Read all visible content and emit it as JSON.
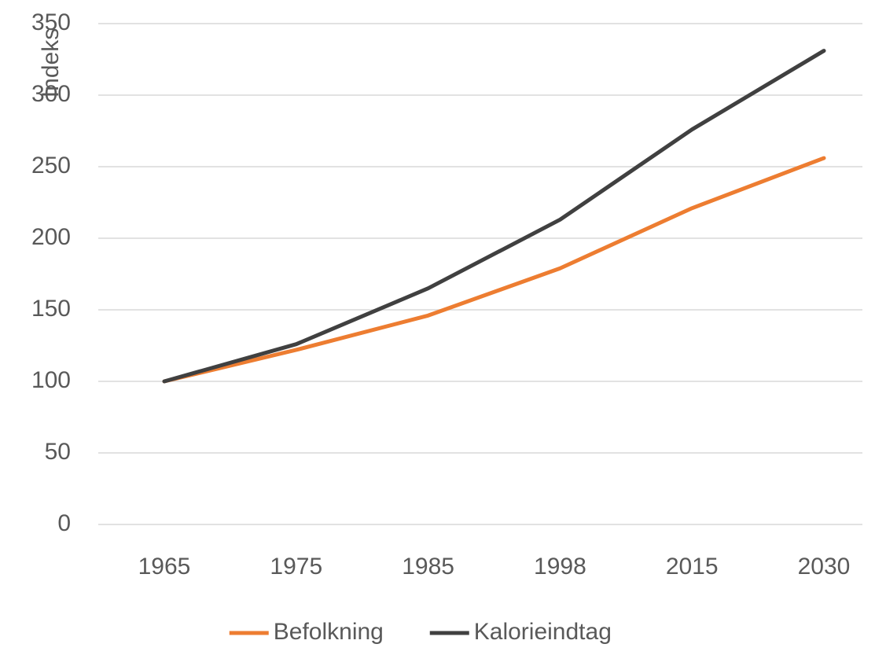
{
  "chart_data": {
    "type": "line",
    "y_label": "Indeks",
    "categories": [
      "1965",
      "1975",
      "1985",
      "1998",
      "2015",
      "2030"
    ],
    "series": [
      {
        "name": "Befolkning",
        "color": "#ed7d31",
        "values": [
          100,
          122,
          146,
          179,
          221,
          256
        ]
      },
      {
        "name": "Kalorieindtag",
        "color": "#404040",
        "values": [
          100,
          126,
          165,
          213,
          276,
          331
        ]
      }
    ],
    "ylim": [
      0,
      350
    ],
    "yticks": [
      0,
      50,
      100,
      150,
      200,
      250,
      300,
      350
    ],
    "grid": true,
    "legend": "bottom"
  }
}
